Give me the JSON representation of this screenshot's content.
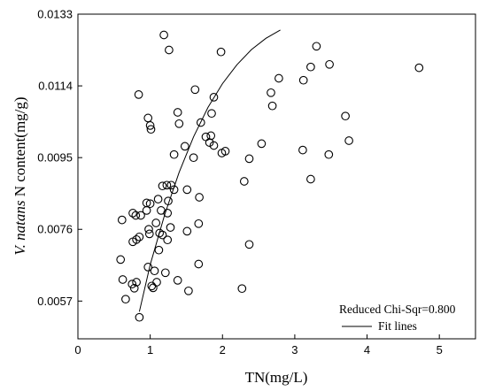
{
  "chart_data": {
    "type": "scatter",
    "xlabel": "TN(mg/L)",
    "ylabel_italic": "V. natans",
    "ylabel_rest": " N content(mg/g)",
    "xlim": [
      0,
      5.5
    ],
    "ylim": [
      0.0047,
      0.0133
    ],
    "xticks": [
      0,
      1,
      2,
      3,
      4,
      5
    ],
    "yticks": [
      0.0057,
      0.0076,
      0.0095,
      0.0114,
      0.0133
    ],
    "ytick_labels": [
      "0.0057",
      "0.0076",
      "0.0095",
      "0.0114",
      "0.0133"
    ],
    "legend": {
      "stat_text": "Reduced Chi-Sqr=0.800",
      "line_label": "Fit lines",
      "placement": "bottom-right"
    },
    "points": [
      [
        1.19,
        0.01275
      ],
      [
        1.26,
        0.01235
      ],
      [
        1.98,
        0.0123
      ],
      [
        3.3,
        0.01245
      ],
      [
        3.22,
        0.0119
      ],
      [
        3.48,
        0.01197
      ],
      [
        4.72,
        0.01188
      ],
      [
        0.84,
        0.01117
      ],
      [
        1.62,
        0.0113
      ],
      [
        1.88,
        0.0111
      ],
      [
        2.67,
        0.01122
      ],
      [
        2.78,
        0.0116
      ],
      [
        3.12,
        0.01155
      ],
      [
        2.69,
        0.01087
      ],
      [
        0.97,
        0.01055
      ],
      [
        1.0,
        0.01035
      ],
      [
        1.01,
        0.01025
      ],
      [
        1.38,
        0.0107
      ],
      [
        1.7,
        0.01043
      ],
      [
        1.85,
        0.01067
      ],
      [
        1.77,
        0.01005
      ],
      [
        1.84,
        0.01008
      ],
      [
        1.82,
        0.0099
      ],
      [
        1.88,
        0.00982
      ],
      [
        1.48,
        0.0098
      ],
      [
        1.4,
        0.0104
      ],
      [
        3.7,
        0.0106
      ],
      [
        3.75,
        0.00995
      ],
      [
        2.54,
        0.00987
      ],
      [
        3.11,
        0.0097
      ],
      [
        3.47,
        0.00958
      ],
      [
        1.99,
        0.00962
      ],
      [
        2.04,
        0.00967
      ],
      [
        1.33,
        0.00958
      ],
      [
        1.6,
        0.0095
      ],
      [
        2.37,
        0.00947
      ],
      [
        3.22,
        0.00893
      ],
      [
        2.3,
        0.00887
      ],
      [
        1.17,
        0.00875
      ],
      [
        1.23,
        0.00877
      ],
      [
        1.29,
        0.00877
      ],
      [
        1.33,
        0.00865
      ],
      [
        1.51,
        0.00865
      ],
      [
        1.11,
        0.0084
      ],
      [
        1.25,
        0.00835
      ],
      [
        1.68,
        0.00845
      ],
      [
        0.95,
        0.0083
      ],
      [
        1.0,
        0.00828
      ],
      [
        0.61,
        0.00785
      ],
      [
        0.76,
        0.00803
      ],
      [
        0.8,
        0.00797
      ],
      [
        0.87,
        0.00797
      ],
      [
        0.95,
        0.0081
      ],
      [
        1.15,
        0.0081
      ],
      [
        1.24,
        0.00803
      ],
      [
        1.08,
        0.00777
      ],
      [
        1.28,
        0.00765
      ],
      [
        1.67,
        0.00775
      ],
      [
        0.98,
        0.0076
      ],
      [
        1.13,
        0.0075
      ],
      [
        1.17,
        0.00745
      ],
      [
        0.99,
        0.00748
      ],
      [
        0.85,
        0.0074
      ],
      [
        0.81,
        0.00733
      ],
      [
        0.76,
        0.00727
      ],
      [
        1.24,
        0.00732
      ],
      [
        1.51,
        0.00755
      ],
      [
        1.12,
        0.00705
      ],
      [
        2.37,
        0.0072
      ],
      [
        0.59,
        0.0068
      ],
      [
        0.97,
        0.0066
      ],
      [
        1.06,
        0.0065
      ],
      [
        1.21,
        0.00645
      ],
      [
        1.67,
        0.00668
      ],
      [
        0.62,
        0.00627
      ],
      [
        0.75,
        0.00615
      ],
      [
        0.81,
        0.0062
      ],
      [
        1.09,
        0.0062
      ],
      [
        1.02,
        0.0061
      ],
      [
        1.04,
        0.00605
      ],
      [
        1.38,
        0.00625
      ],
      [
        1.53,
        0.00597
      ],
      [
        2.27,
        0.00603
      ],
      [
        0.78,
        0.00604
      ],
      [
        0.66,
        0.00575
      ],
      [
        0.85,
        0.00527
      ]
    ],
    "fit_line": [
      [
        0.85,
        0.00542
      ],
      [
        1.0,
        0.00666
      ],
      [
        1.2,
        0.00799
      ],
      [
        1.4,
        0.00911
      ],
      [
        1.6,
        0.01005
      ],
      [
        1.8,
        0.01083
      ],
      [
        2.0,
        0.01146
      ],
      [
        2.2,
        0.01196
      ],
      [
        2.4,
        0.01236
      ],
      [
        2.6,
        0.01266
      ],
      [
        2.8,
        0.01288
      ]
    ]
  }
}
